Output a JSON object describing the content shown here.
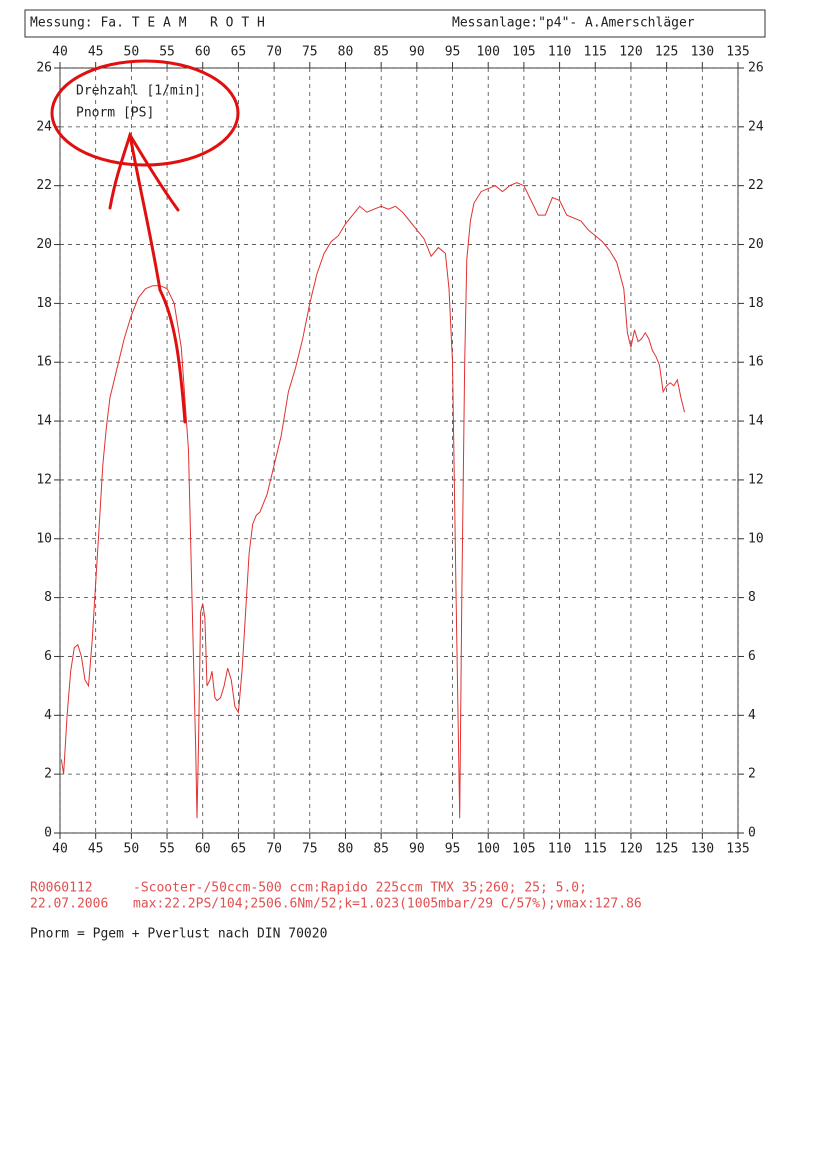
{
  "chart_data": {
    "type": "line",
    "header_left": "Messung: Fa. T E A M   R O T H",
    "header_right": "Messanlage:\"p4\"- A.Amerschläger",
    "x_label": "Drehzahl [1/min]",
    "x": [
      40.2,
      40.5,
      41,
      41.5,
      42,
      42.5,
      43,
      43.5,
      44,
      44.5,
      45,
      45.5,
      46,
      46.5,
      47,
      48,
      49,
      50,
      51,
      52,
      53,
      54,
      55,
      56,
      57,
      58,
      58.5,
      59,
      59.2,
      59.4,
      59.7,
      60,
      60.3,
      60.6,
      61,
      61.3,
      61.7,
      62,
      62.5,
      63,
      63.5,
      64,
      64.5,
      65,
      65.5,
      66,
      66.5,
      67,
      67.5,
      68,
      69,
      70,
      71,
      72,
      73,
      74,
      75,
      76,
      77,
      78,
      79,
      80,
      81,
      82,
      83,
      84,
      85,
      86,
      87,
      88,
      89,
      90,
      91,
      92,
      93,
      94,
      94.5,
      95,
      95.5,
      96,
      96.3,
      96.7,
      97,
      97.5,
      98,
      99,
      100,
      101,
      102,
      103,
      104,
      105,
      106,
      107,
      108,
      109,
      110,
      111,
      112,
      113,
      114,
      115,
      116,
      117,
      118,
      119,
      119.5,
      120,
      120.5,
      121,
      121.5,
      122,
      122.5,
      123,
      123.5,
      124,
      124.5,
      125,
      125.5,
      126,
      126.5,
      127,
      127.5
    ],
    "series": [
      {
        "name": "Pnorm [PS]",
        "color": "#e03030",
        "values": [
          2.5,
          2.0,
          4,
          5.5,
          6.3,
          6.4,
          6,
          5.2,
          5.0,
          6.5,
          8.5,
          10.5,
          12.5,
          13.8,
          14.8,
          15.8,
          16.8,
          17.6,
          18.2,
          18.5,
          18.6,
          18.6,
          18.5,
          18,
          16.5,
          13,
          8,
          3,
          0.5,
          3,
          7.5,
          7.8,
          7.3,
          5,
          5.2,
          5.5,
          4.6,
          4.5,
          4.6,
          5,
          5.6,
          5.2,
          4.3,
          4.1,
          5.5,
          7.5,
          9.5,
          10.5,
          10.8,
          10.9,
          11.5,
          12.5,
          13.5,
          15,
          15.8,
          16.8,
          18,
          19,
          19.7,
          20.1,
          20.3,
          20.7,
          21,
          21.3,
          21.1,
          21.2,
          21.3,
          21.2,
          21.3,
          21.1,
          20.8,
          20.5,
          20.2,
          19.6,
          19.9,
          19.7,
          18.5,
          16,
          8,
          0.5,
          8,
          16,
          19.5,
          20.8,
          21.4,
          21.8,
          21.9,
          22,
          21.8,
          22,
          22.1,
          22,
          21.5,
          21,
          21,
          21.6,
          21.5,
          21,
          20.9,
          20.8,
          20.5,
          20.3,
          20.1,
          19.8,
          19.4,
          18.5,
          17,
          16.5,
          17.1,
          16.7,
          16.8,
          17,
          16.8,
          16.4,
          16.2,
          15.9,
          15,
          15.2,
          15.3,
          15.2,
          15.4,
          14.8,
          14.3
        ]
      }
    ],
    "xlim": [
      40,
      135
    ],
    "xticks": [
      40,
      45,
      50,
      55,
      60,
      65,
      70,
      75,
      80,
      85,
      90,
      95,
      100,
      105,
      110,
      115,
      120,
      125,
      130,
      135
    ],
    "ylim": [
      0,
      26
    ],
    "yticks": [
      0,
      2,
      4,
      6,
      8,
      10,
      12,
      14,
      16,
      18,
      20,
      22,
      24,
      26
    ],
    "grid": true,
    "notes": [
      "R0060112",
      "-Scooter-/50ccm-500 ccm:Rapido 225ccm TMX 35;260; 25; 5.0;",
      "22.07.2006",
      "max:22.2PS/104;2506.6Nm/52;k=1.023(1005mbar/29 C/57%);vmax:127.86",
      "Pnorm = Pgem + Pverlust nach DIN 70020"
    ]
  }
}
